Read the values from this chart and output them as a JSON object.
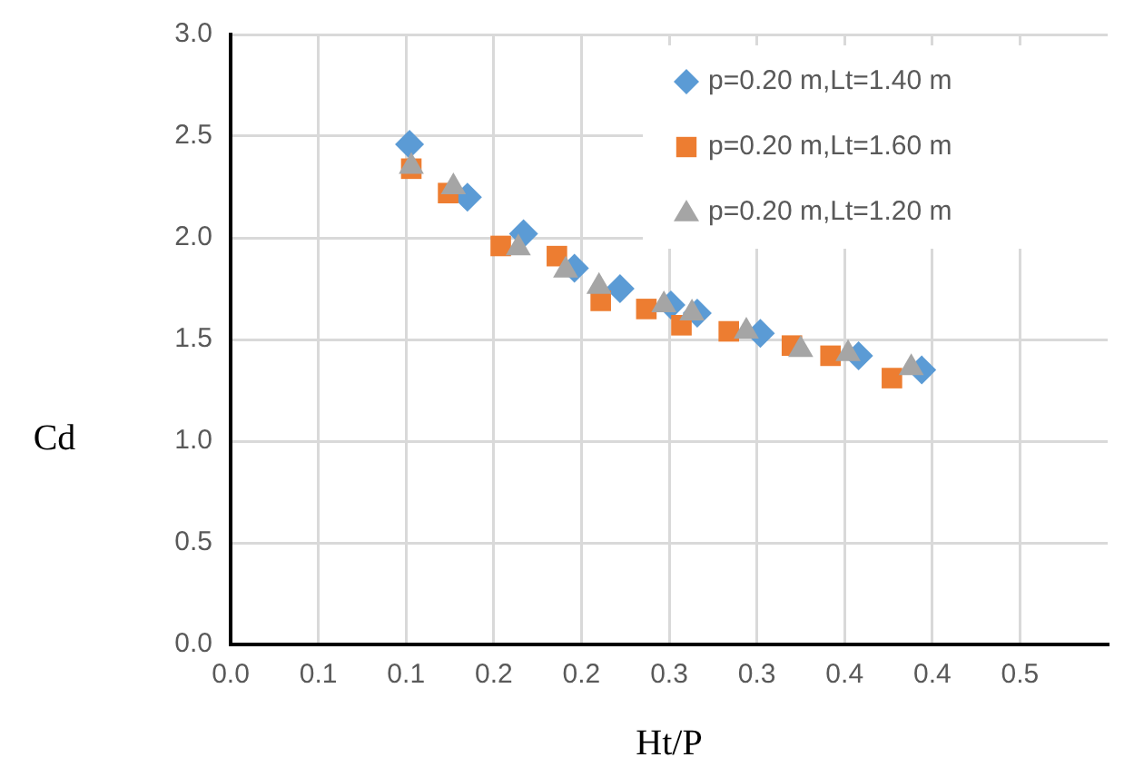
{
  "chart_data": {
    "type": "scatter",
    "xlabel": "Ht/P",
    "ylabel": "Cd",
    "xlim": [
      0,
      0.5
    ],
    "xticks": [
      {
        "value": 0,
        "label": "0.0"
      },
      {
        "value": 0.05,
        "label": "0.1"
      },
      {
        "value": 0.1,
        "label": "0.1"
      },
      {
        "value": 0.15,
        "label": "0.2"
      },
      {
        "value": 0.2,
        "label": "0.2"
      },
      {
        "value": 0.25,
        "label": "0.3"
      },
      {
        "value": 0.3,
        "label": "0.3"
      },
      {
        "value": 0.35,
        "label": "0.4"
      },
      {
        "value": 0.4,
        "label": "0.4"
      },
      {
        "value": 0.45,
        "label": "0.5"
      }
    ],
    "ylim": [
      0,
      3
    ],
    "yticks": [
      {
        "value": 0,
        "label": "0.0"
      },
      {
        "value": 0.5,
        "label": "0.5"
      },
      {
        "value": 1,
        "label": "1.0"
      },
      {
        "value": 1.5,
        "label": "1.5"
      },
      {
        "value": 2,
        "label": "2.0"
      },
      {
        "value": 2.5,
        "label": "2.5"
      },
      {
        "value": 3,
        "label": "3.0"
      }
    ],
    "grid": true,
    "legend": "top right",
    "series": [
      {
        "name": "p=0.20 m,Lt=1.40 m",
        "color": "#5b9bd5",
        "marker": "diamond",
        "x": [
          0.102,
          0.135,
          0.167,
          0.196,
          0.222,
          0.251,
          0.266,
          0.302,
          0.358,
          0.394
        ],
        "values": [
          2.46,
          2.2,
          2.02,
          1.85,
          1.75,
          1.67,
          1.63,
          1.53,
          1.42,
          1.35
        ]
      },
      {
        "name": "p=0.20 m,Lt=1.60 m",
        "color": "#ed7d31",
        "marker": "square",
        "x": [
          0.103,
          0.124,
          0.154,
          0.186,
          0.211,
          0.237,
          0.257,
          0.284,
          0.32,
          0.342,
          0.377
        ],
        "values": [
          2.34,
          2.22,
          1.96,
          1.91,
          1.69,
          1.65,
          1.57,
          1.54,
          1.47,
          1.42,
          1.31
        ]
      },
      {
        "name": "p=0.20 m,Lt=1.20 m",
        "color": "#a5a5a5",
        "marker": "triangle",
        "x": [
          0.103,
          0.127,
          0.164,
          0.191,
          0.21,
          0.247,
          0.263,
          0.294,
          0.325,
          0.352,
          0.388
        ],
        "values": [
          2.35,
          2.25,
          1.95,
          1.84,
          1.76,
          1.67,
          1.63,
          1.54,
          1.45,
          1.43,
          1.36
        ]
      }
    ]
  }
}
